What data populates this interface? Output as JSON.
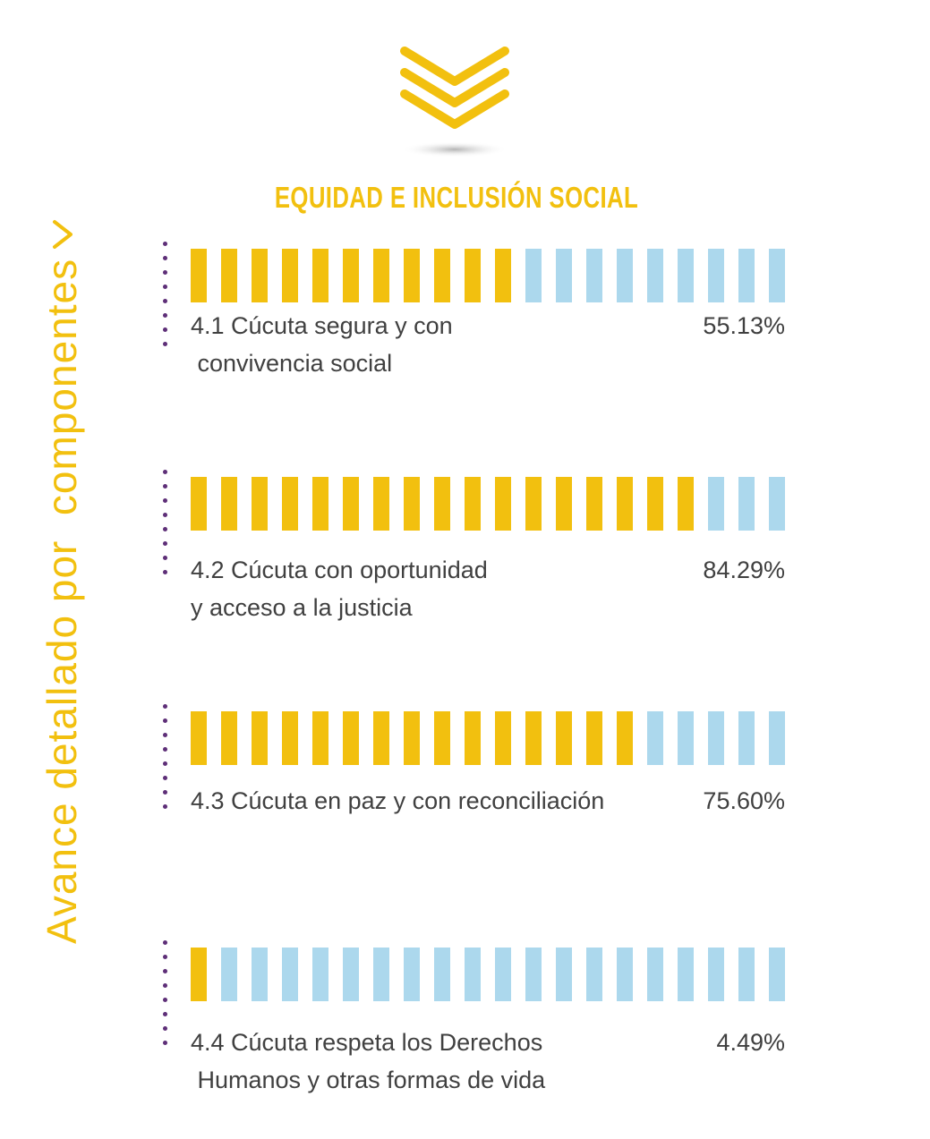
{
  "side_title": "Avance detallado por  componentes",
  "colors": {
    "filled": "#f2c00f",
    "empty": "#acd8ed",
    "dots": "#5e2f78",
    "text": "#404040"
  },
  "icons": {
    "header": "triple-chevron-down-icon",
    "side": "chevron-right-icon"
  },
  "chart_data": {
    "type": "bar",
    "title": "EQUIDAD E INCLUSIÓN SOCIAL",
    "orientation": "horizontal",
    "unit": "%",
    "xlim": [
      0,
      100
    ],
    "segments": 20,
    "categories": [
      "4.1 Cúcuta segura y con\n convivencia social",
      "4.2 Cúcuta con oportunidad\ny acceso a la justicia",
      "4.3 Cúcuta en paz y con reconciliación",
      "4.4 Cúcuta respeta los Derechos\n Humanos y otras formas de vida"
    ],
    "values": [
      55.13,
      84.29,
      75.6,
      4.49
    ],
    "value_labels": [
      "55.13%",
      "84.29%",
      "75.60%",
      "4.49%"
    ]
  }
}
